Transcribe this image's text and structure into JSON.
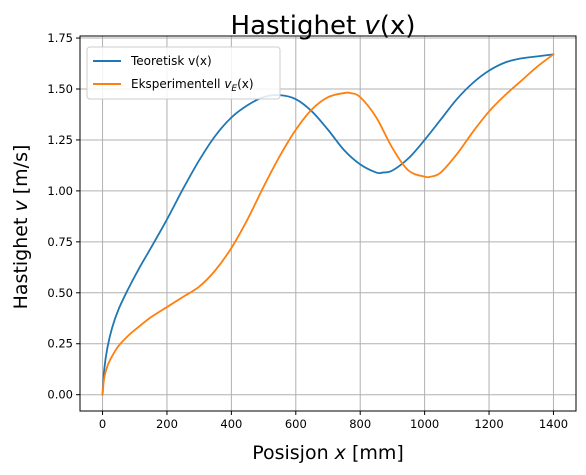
{
  "chart_data": {
    "type": "line",
    "title": {
      "prefix": "Hastighet ",
      "var": "v",
      "suffix": "(x)"
    },
    "xlabel": {
      "prefix": "Posisjon ",
      "var": "x",
      "suffix": " [mm]"
    },
    "ylabel": {
      "prefix": "Hastighet ",
      "var": "v",
      "suffix": " [m/s]"
    },
    "xlim": [
      -70,
      1470
    ],
    "ylim": [
      -0.08,
      1.76
    ],
    "xticks": [
      0,
      200,
      400,
      600,
      800,
      1000,
      1200,
      1400
    ],
    "yticks": [
      0.0,
      0.25,
      0.5,
      0.75,
      1.0,
      1.25,
      1.5,
      1.75
    ],
    "grid": true,
    "legend_position": "top-left",
    "series": [
      {
        "name": "Teoretisk v(x)",
        "color": "#1f77b4",
        "x": [
          0,
          5,
          15,
          30,
          50,
          80,
          110,
          150,
          200,
          250,
          300,
          350,
          400,
          450,
          500,
          550,
          600,
          650,
          700,
          750,
          800,
          850,
          870,
          900,
          950,
          1000,
          1050,
          1100,
          1150,
          1200,
          1250,
          1300,
          1350,
          1400
        ],
        "y": [
          0.0,
          0.12,
          0.23,
          0.33,
          0.42,
          0.52,
          0.61,
          0.72,
          0.86,
          1.01,
          1.15,
          1.27,
          1.36,
          1.42,
          1.46,
          1.47,
          1.45,
          1.39,
          1.3,
          1.2,
          1.13,
          1.09,
          1.09,
          1.1,
          1.16,
          1.25,
          1.35,
          1.45,
          1.53,
          1.59,
          1.63,
          1.65,
          1.66,
          1.67
        ]
      },
      {
        "name_prefix": "Eksperimentell ",
        "name_var": "v",
        "name_sub": "E",
        "name_suffix": "(x)",
        "color": "#ff7f0e",
        "x": [
          0,
          5,
          15,
          30,
          50,
          80,
          110,
          150,
          200,
          250,
          300,
          350,
          400,
          450,
          500,
          550,
          600,
          650,
          700,
          750,
          770,
          800,
          850,
          900,
          950,
          1000,
          1020,
          1050,
          1100,
          1150,
          1200,
          1250,
          1300,
          1350,
          1400
        ],
        "y": [
          0.0,
          0.08,
          0.14,
          0.19,
          0.24,
          0.29,
          0.33,
          0.38,
          0.43,
          0.48,
          0.53,
          0.61,
          0.72,
          0.86,
          1.02,
          1.17,
          1.3,
          1.4,
          1.46,
          1.48,
          1.48,
          1.46,
          1.36,
          1.21,
          1.1,
          1.07,
          1.07,
          1.09,
          1.18,
          1.29,
          1.39,
          1.47,
          1.54,
          1.61,
          1.67
        ]
      }
    ]
  }
}
